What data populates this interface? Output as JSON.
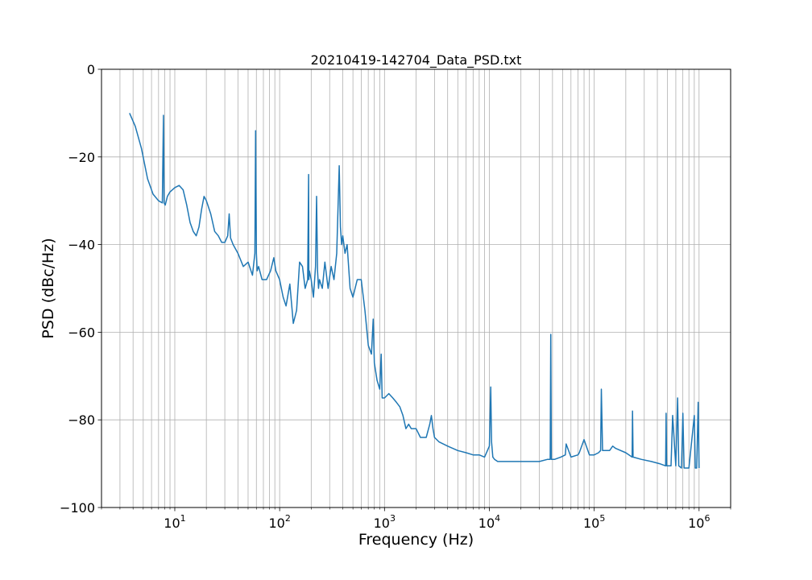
{
  "chart_data": {
    "type": "line",
    "title": "20210419-142704_Data_PSD.txt",
    "xlabel": "Frequency (Hz)",
    "ylabel": "PSD (dBc/Hz)",
    "x_scale": "log",
    "xlim": [
      2,
      2000000
    ],
    "ylim": [
      -100,
      0
    ],
    "grid": "on (major and minor x, major y)",
    "x_ticks": [
      {
        "value": 10,
        "base": "10",
        "exp": "1"
      },
      {
        "value": 100,
        "base": "10",
        "exp": "2"
      },
      {
        "value": 1000,
        "base": "10",
        "exp": "3"
      },
      {
        "value": 10000,
        "base": "10",
        "exp": "4"
      },
      {
        "value": 100000,
        "base": "10",
        "exp": "5"
      },
      {
        "value": 1000000,
        "base": "10",
        "exp": "6"
      }
    ],
    "y_ticks": [
      {
        "value": 0,
        "label": "0"
      },
      {
        "value": -20,
        "label": "−20"
      },
      {
        "value": -40,
        "label": "−40"
      },
      {
        "value": -60,
        "label": "−60"
      },
      {
        "value": -80,
        "label": "−80"
      },
      {
        "value": -100,
        "label": "−100"
      }
    ],
    "series": [
      {
        "color": "#1f77b4",
        "x": [
          3.7,
          4.2,
          4.8,
          5.5,
          6.2,
          7.0,
          7.6,
          7.8,
          7.9,
          8.1,
          8.5,
          9.0,
          10,
          11,
          12,
          13,
          14,
          15,
          16,
          17,
          18,
          19,
          20,
          22,
          24,
          26,
          28,
          30,
          32,
          33,
          34,
          36,
          40,
          45,
          50,
          55,
          58,
          59,
          60,
          61,
          63,
          68,
          75,
          82,
          88,
          92,
          100,
          108,
          115,
          125,
          135,
          145,
          155,
          165,
          175,
          185,
          189,
          190,
          192,
          200,
          210,
          220,
          225,
          230,
          235,
          240,
          255,
          270,
          290,
          310,
          330,
          350,
          370,
          380,
          390,
          400,
          420,
          440,
          470,
          500,
          550,
          600,
          650,
          700,
          750,
          780,
          800,
          850,
          900,
          930,
          950,
          1000,
          1100,
          1200,
          1300,
          1400,
          1500,
          1600,
          1700,
          1800,
          2000,
          2200,
          2500,
          2700,
          2800,
          2900,
          3000,
          3300,
          4000,
          5000,
          6000,
          7000,
          8000,
          9000,
          10000,
          10300,
          10500,
          10800,
          11200,
          12000,
          14000,
          17000,
          20000,
          25000,
          30000,
          36000,
          38000,
          38500,
          39000,
          42000,
          48000,
          53000,
          54000,
          60000,
          70000,
          72000,
          80000,
          90000,
          100000,
          110000,
          115000,
          117000,
          120000,
          130000,
          140000,
          150000,
          160000,
          200000,
          230000,
          232000,
          235000,
          280000,
          350000,
          420000,
          480000,
          485000,
          490000,
          540000,
          560000,
          600000,
          625000,
          640000,
          680000,
          700000,
          720000,
          800000,
          900000,
          920000,
          950000,
          980000,
          1000000
        ],
        "y": [
          -10,
          -13,
          -18,
          -25,
          -28.5,
          -30,
          -30.5,
          -10.5,
          -30.5,
          -31,
          -29,
          -28,
          -27,
          -26.5,
          -27.5,
          -31,
          -35,
          -37,
          -38,
          -36,
          -32,
          -29,
          -30,
          -33,
          -37,
          -38,
          -39.5,
          -39.5,
          -38,
          -33,
          -38.5,
          -40,
          -42,
          -45,
          -44,
          -47,
          -42,
          -14,
          -42,
          -46,
          -45,
          -48,
          -48,
          -46,
          -43,
          -46,
          -48,
          -52,
          -54,
          -49,
          -58,
          -55,
          -44,
          -45,
          -50,
          -48,
          -24,
          -48,
          -46,
          -48,
          -52,
          -45,
          -29,
          -46,
          -50,
          -48,
          -50,
          -44,
          -50,
          -45,
          -48,
          -42,
          -22,
          -36,
          -40,
          -38,
          -42,
          -40,
          -50,
          -52,
          -48,
          -48,
          -55,
          -63,
          -65,
          -57,
          -67,
          -71,
          -73,
          -65,
          -75,
          -75,
          -74,
          -75,
          -76,
          -77,
          -79,
          -82,
          -81,
          -82,
          -82,
          -84,
          -84,
          -81,
          -79,
          -82,
          -84,
          -85,
          -86,
          -87,
          -87.5,
          -88,
          -88,
          -88.5,
          -86,
          -72.5,
          -85,
          -88.5,
          -89,
          -89.5,
          -89.5,
          -89.5,
          -89.5,
          -89.5,
          -89.5,
          -89,
          -89,
          -60.5,
          -89,
          -89,
          -88.5,
          -88,
          -85.5,
          -88.5,
          -88,
          -87.5,
          -84.5,
          -88,
          -88,
          -87.5,
          -87,
          -73,
          -87,
          -87,
          -87,
          -86,
          -86.5,
          -87.5,
          -88.5,
          -78,
          -88.5,
          -89,
          -89.5,
          -90,
          -90.5,
          -78.5,
          -90.5,
          -90.5,
          -79,
          -90.5,
          -75,
          -90.5,
          -91,
          -78.5,
          -91,
          -91,
          -79,
          -91,
          -91,
          -76,
          -91
        ]
      }
    ]
  }
}
